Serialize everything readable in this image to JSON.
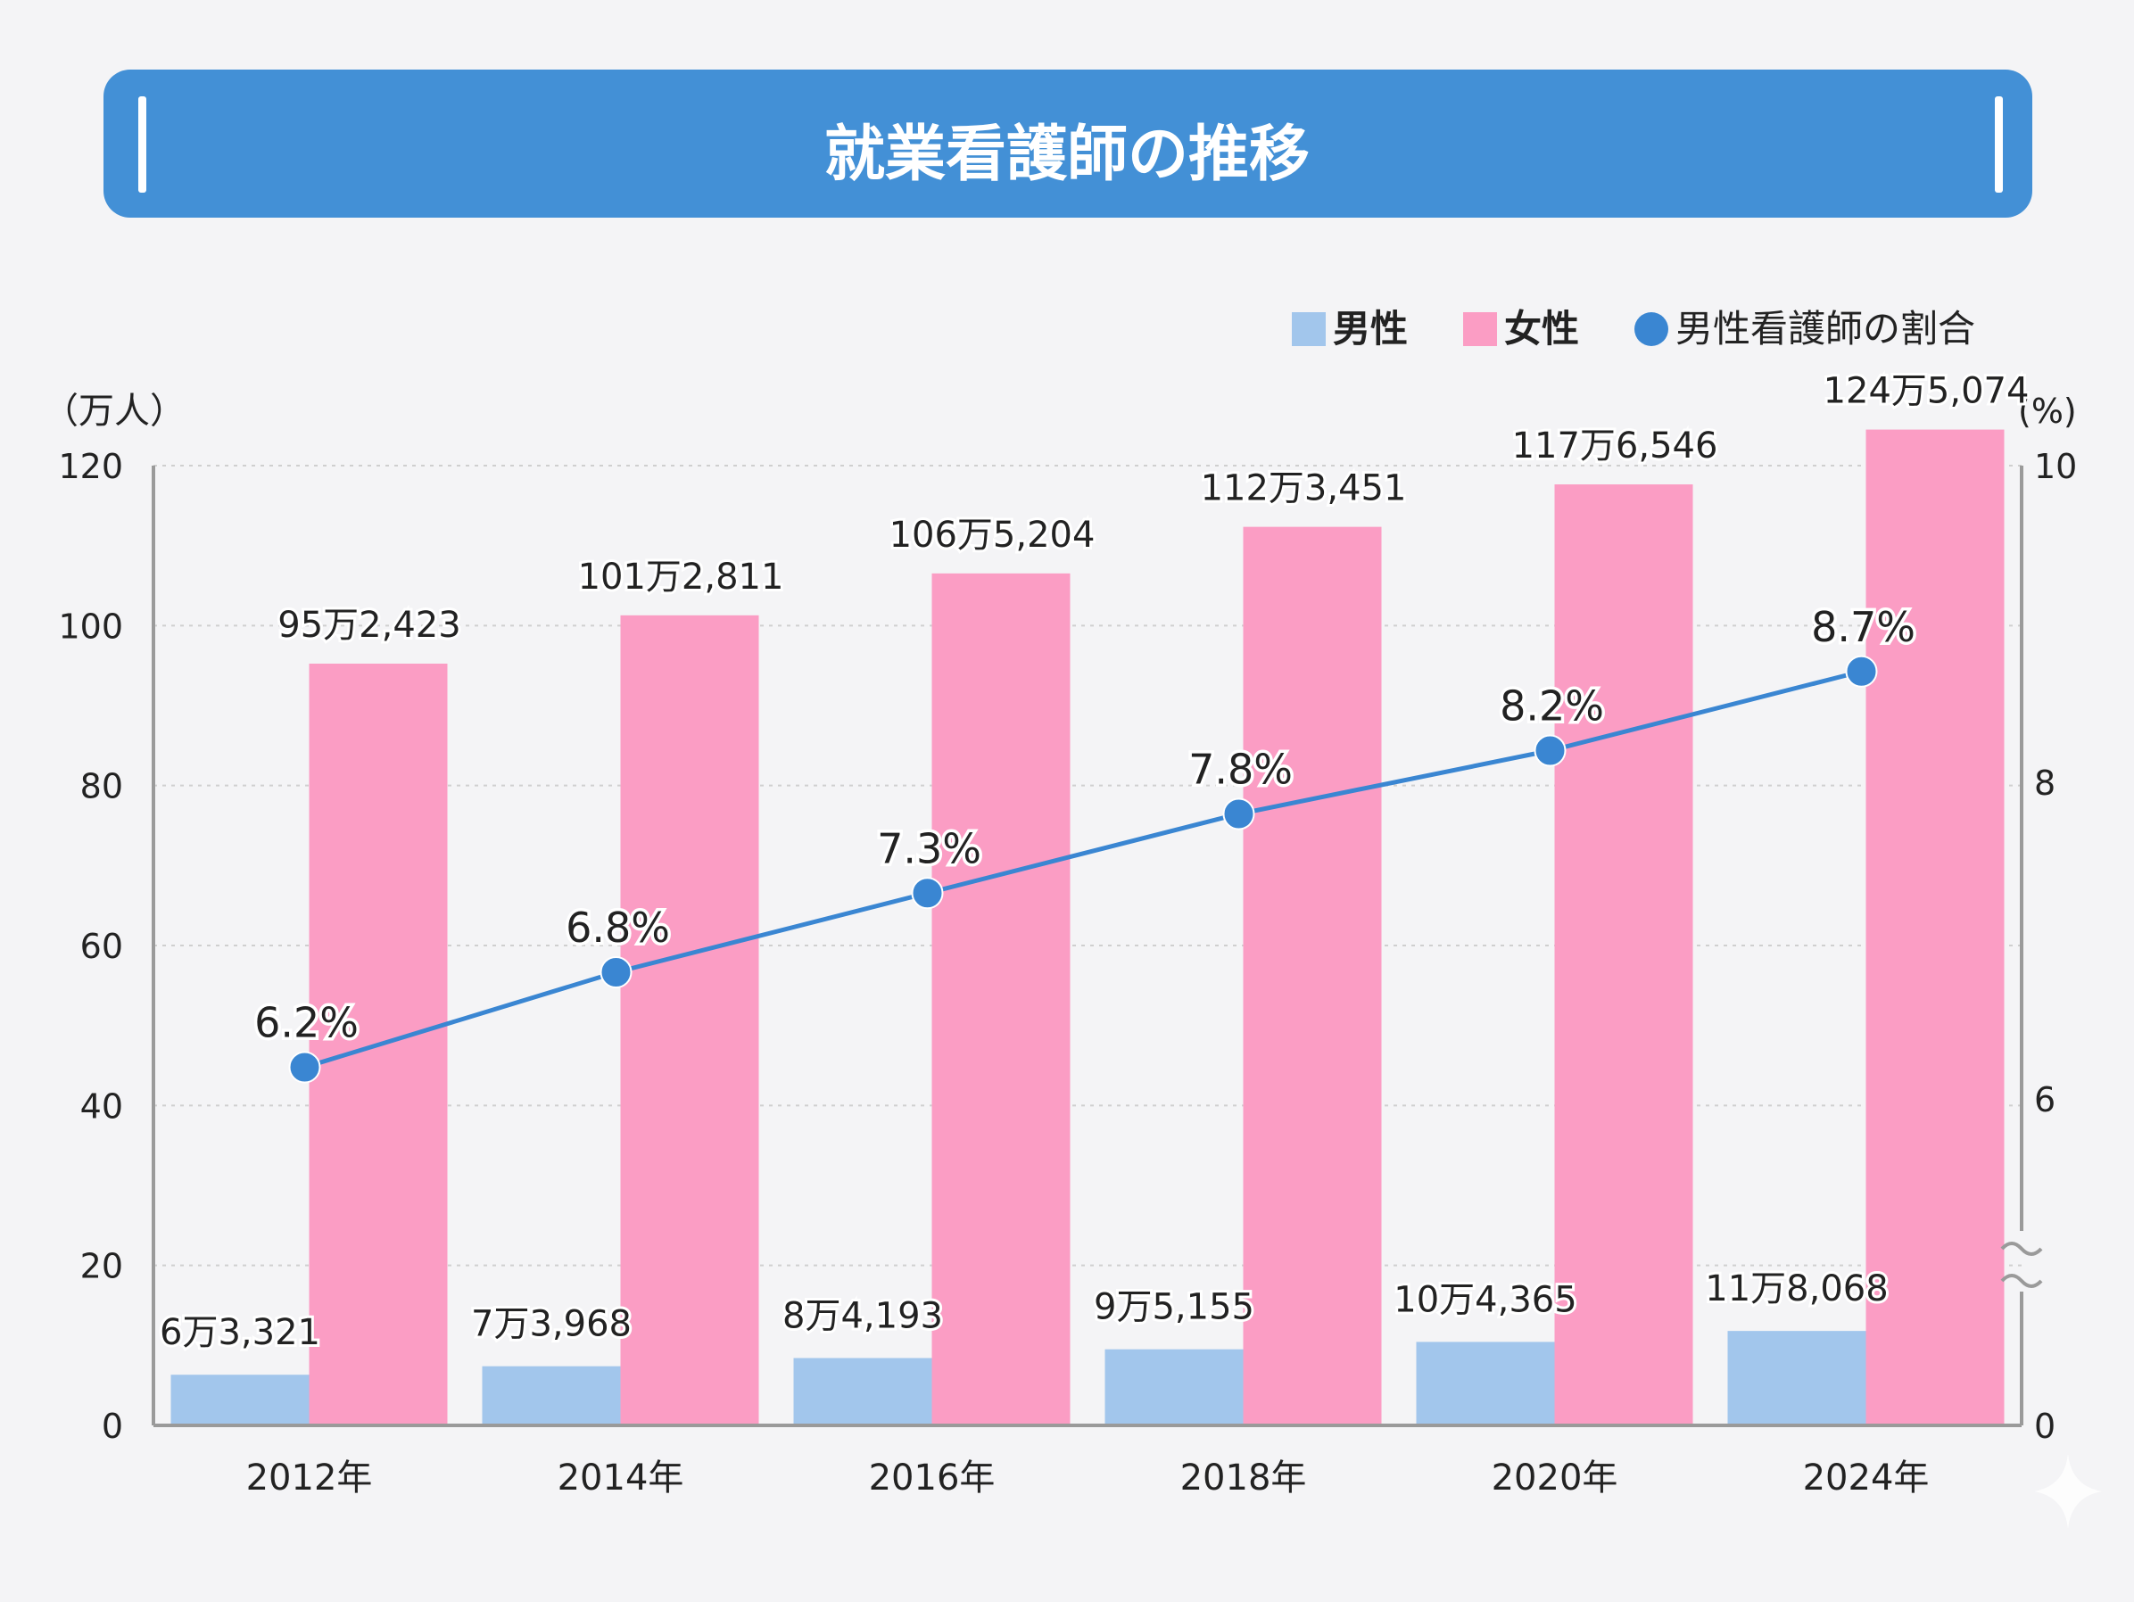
{
  "colors": {
    "background": "#f4f4f6",
    "banner": "#4390d6",
    "banner_text": "#ffffff",
    "male_bar": "#a2c6ec",
    "female_bar": "#fb9dc4",
    "ratio_line": "#3a86d2",
    "axis": "#9a9a9a",
    "grid": "#cfcfcf",
    "text": "#222222"
  },
  "chart_data": {
    "type": "bar",
    "title": "就業看護師の推移",
    "categories": [
      "2012年",
      "2014年",
      "2016年",
      "2018年",
      "2020年",
      "2024年"
    ],
    "series": [
      {
        "name": "男性",
        "type": "bar",
        "axis": "left",
        "values": [
          6.3321,
          7.3968,
          8.4193,
          9.5155,
          10.4365,
          11.8068
        ],
        "labels": [
          "6万3,321",
          "7万3,968",
          "8万4,193",
          "9万5,155",
          "10万4,365",
          "11万8,068"
        ]
      },
      {
        "name": "女性",
        "type": "bar",
        "axis": "left",
        "values": [
          95.2423,
          101.2811,
          106.5204,
          112.3451,
          117.6546,
          124.5074
        ],
        "labels": [
          "95万2,423",
          "101万2,811",
          "106万5,204",
          "112万3,451",
          "117万6,546",
          "124万5,074"
        ]
      },
      {
        "name": "男性看護師の割合",
        "type": "line",
        "axis": "right",
        "values": [
          6.2,
          6.8,
          7.3,
          7.8,
          8.2,
          8.7
        ],
        "labels": [
          "6.2%",
          "6.8%",
          "7.3%",
          "7.8%",
          "8.2%",
          "8.7%"
        ]
      }
    ],
    "y_left": {
      "unit_label": "（万人）",
      "min": 0,
      "max": 120,
      "ticks": [
        0,
        20,
        40,
        60,
        80,
        100,
        120
      ],
      "tick_labels": [
        "0",
        "20",
        "40",
        "60",
        "80",
        "100",
        "120"
      ]
    },
    "y_right": {
      "unit_label": "(%)",
      "min": 0,
      "max": 10,
      "axis_break": true,
      "ticks": [
        0,
        6,
        8,
        10
      ],
      "tick_labels": [
        "0",
        "6",
        "8",
        "10"
      ]
    },
    "grid": true,
    "legend_position": "top-right"
  }
}
